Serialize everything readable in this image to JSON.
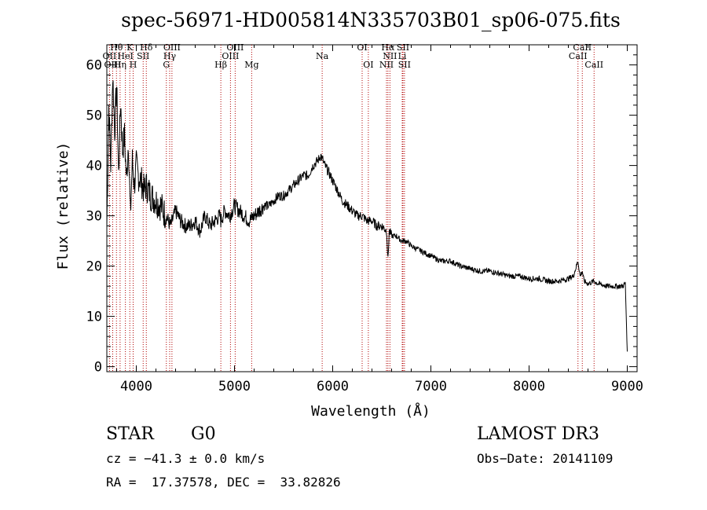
{
  "chart_data": {
    "type": "line",
    "title": "spec-56971-HD005814N335703B01_sp06-075.fits",
    "xlabel": "Wavelength (Å)",
    "ylabel": "Flux (relative)",
    "xlim": [
      3700,
      9100
    ],
    "ylim": [
      -1,
      64
    ],
    "x_ticks": [
      4000,
      5000,
      6000,
      7000,
      8000,
      9000
    ],
    "y_ticks": [
      0,
      10,
      20,
      30,
      40,
      50,
      60
    ],
    "series": [
      {
        "name": "flux",
        "x": [
          3700,
          3720,
          3740,
          3760,
          3780,
          3800,
          3820,
          3840,
          3860,
          3880,
          3900,
          3920,
          3940,
          3960,
          3980,
          4000,
          4020,
          4050,
          4080,
          4100,
          4150,
          4200,
          4250,
          4300,
          4350,
          4400,
          4450,
          4500,
          4550,
          4600,
          4650,
          4700,
          4750,
          4800,
          4850,
          4861,
          4900,
          4950,
          5000,
          5050,
          5100,
          5150,
          5200,
          5250,
          5300,
          5350,
          5400,
          5450,
          5500,
          5550,
          5600,
          5650,
          5700,
          5750,
          5800,
          5850,
          5880,
          5900,
          5920,
          5950,
          6000,
          6050,
          6100,
          6150,
          6200,
          6250,
          6300,
          6350,
          6400,
          6450,
          6500,
          6550,
          6563,
          6575,
          6600,
          6650,
          6700,
          6750,
          6800,
          6900,
          7000,
          7100,
          7200,
          7300,
          7400,
          7500,
          7600,
          7700,
          7800,
          7900,
          8000,
          8100,
          8200,
          8300,
          8400,
          8450,
          8498,
          8520,
          8542,
          8560,
          8600,
          8662,
          8700,
          8800,
          8900,
          8950,
          8980,
          9000
        ],
        "y": [
          28,
          52,
          40,
          58,
          47,
          56,
          38,
          53,
          43,
          46,
          37,
          45,
          30,
          41,
          36,
          40,
          38,
          37,
          35,
          36,
          34,
          33,
          32,
          30,
          28,
          31,
          29,
          28,
          28,
          29,
          27,
          30,
          28,
          29,
          30,
          29,
          31,
          30,
          32,
          31,
          30,
          29,
          30,
          31,
          32,
          32,
          33,
          34,
          34,
          35,
          36,
          37,
          38,
          38,
          40,
          41,
          42,
          41,
          40,
          39,
          37,
          35,
          33,
          32,
          31,
          30,
          30,
          29,
          29,
          28,
          28,
          27,
          21,
          27,
          26,
          26,
          25,
          25,
          24,
          23,
          22,
          21,
          21,
          20,
          19.5,
          19,
          19,
          18.5,
          18,
          18,
          17.5,
          17.5,
          17,
          17,
          17.5,
          18,
          21,
          18,
          19,
          17,
          16.5,
          17,
          16.5,
          16,
          16,
          16,
          16.5,
          3
        ]
      }
    ],
    "lines_top": [
      {
        "label": "Hθ",
        "x": 3798
      },
      {
        "label": "K",
        "x": 3934
      },
      {
        "label": "Hδ",
        "x": 4102
      },
      {
        "label": "OIII",
        "x": 4363
      },
      {
        "label": "OIII",
        "x": 5007
      },
      {
        "label": "OI",
        "x": 6300
      },
      {
        "label": "Hα",
        "x": 6563
      },
      {
        "label": "SII",
        "x": 6716
      },
      {
        "label": "CaII",
        "x": 8542
      }
    ],
    "lines_mid": [
      {
        "label": "OII",
        "x": 3727
      },
      {
        "label": "HeI",
        "x": 3889
      },
      {
        "label": "SII",
        "x": 4070
      },
      {
        "label": "Hγ",
        "x": 4340
      },
      {
        "label": "OIII",
        "x": 4959
      },
      {
        "label": "Na",
        "x": 5893
      },
      {
        "label": "NII",
        "x": 6583
      },
      {
        "label": "Li",
        "x": 6708
      },
      {
        "label": "CaII",
        "x": 8498
      }
    ],
    "lines_bot": [
      {
        "label": "OIII",
        "x": 3760
      },
      {
        "label": "Hη",
        "x": 3835
      },
      {
        "label": "H",
        "x": 3968
      },
      {
        "label": "G",
        "x": 4306
      },
      {
        "label": "Hβ",
        "x": 4861
      },
      {
        "label": "Mg",
        "x": 5175
      },
      {
        "label": "OI",
        "x": 6363
      },
      {
        "label": "NII",
        "x": 6548
      },
      {
        "label": "SII",
        "x": 6731
      },
      {
        "label": "CaII",
        "x": 8662
      }
    ]
  },
  "info": {
    "class_label": "STAR",
    "subclass": "G0",
    "survey": "LAMOST DR3",
    "cz": "cz = −41.3 ± 0.0 km/s",
    "obs_date": "Obs−Date: 20141109",
    "coords": "RA =  17.37578, DEC =  33.82826"
  }
}
